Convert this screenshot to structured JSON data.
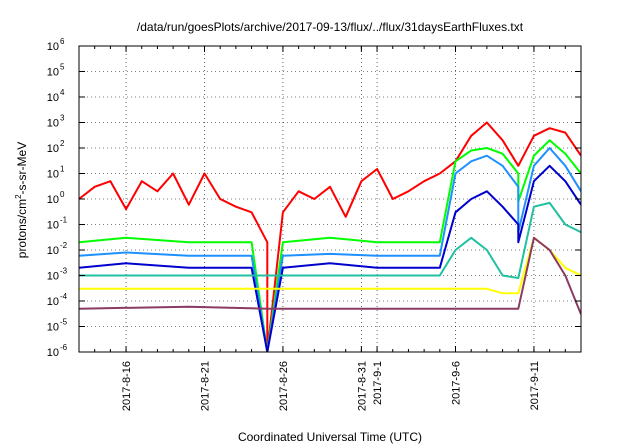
{
  "chart_data": {
    "type": "line",
    "title": "/data/run/goesPlots/archive/2017-09-13/flux/../flux/31daysEarthFluxes.txt",
    "xlabel": "Coordinated Universal Time (UTC)",
    "ylabel": {
      "base": "protons/cm",
      "exp": "2",
      "rest": "-s-sr-MeV"
    },
    "xlim": [
      "2017-08-13",
      "2017-09-14"
    ],
    "ylim": [
      1e-06,
      1000000.0
    ],
    "y_scale": "log",
    "grid": true,
    "x_ticks": [
      {
        "label": "2017-8-16",
        "date": "2017-08-16"
      },
      {
        "label": "2017-8-21",
        "date": "2017-08-21"
      },
      {
        "label": "2017-8-26",
        "date": "2017-08-26"
      },
      {
        "label": "2017-8-31",
        "date": "2017-08-31"
      },
      {
        "label": "2017-9-1",
        "date": "2017-09-01"
      },
      {
        "label": "2017-9-6",
        "date": "2017-09-06"
      },
      {
        "label": "2017-9-11",
        "date": "2017-09-11"
      }
    ],
    "y_ticks": [
      {
        "base": "10",
        "exp": "-6",
        "value": 1e-06
      },
      {
        "base": "10",
        "exp": "-5",
        "value": 1e-05
      },
      {
        "base": "10",
        "exp": "-4",
        "value": 0.0001
      },
      {
        "base": "10",
        "exp": "-3",
        "value": 0.001
      },
      {
        "base": "10",
        "exp": "-2",
        "value": 0.01
      },
      {
        "base": "10",
        "exp": "-1",
        "value": 0.1
      },
      {
        "base": "10",
        "exp": "0",
        "value": 1
      },
      {
        "base": "10",
        "exp": "1",
        "value": 10
      },
      {
        "base": "10",
        "exp": "2",
        "value": 100
      },
      {
        "base": "10",
        "exp": "3",
        "value": 1000
      },
      {
        "base": "10",
        "exp": "4",
        "value": 10000
      },
      {
        "base": "10",
        "exp": "5",
        "value": 100000
      },
      {
        "base": "10",
        "exp": "6",
        "value": 1000000
      }
    ],
    "series": [
      {
        "color": "#ff0000",
        "data": [
          [
            "2017-08-13",
            1.0
          ],
          [
            "2017-08-14",
            3.0
          ],
          [
            "2017-08-15",
            5.0
          ],
          [
            "2017-08-16",
            0.4
          ],
          [
            "2017-08-17",
            5.0
          ],
          [
            "2017-08-18",
            2.0
          ],
          [
            "2017-08-19",
            10
          ],
          [
            "2017-08-20",
            0.6
          ],
          [
            "2017-08-21",
            10
          ],
          [
            "2017-08-22",
            1.0
          ],
          [
            "2017-08-23",
            0.5
          ],
          [
            "2017-08-24",
            0.3
          ],
          [
            "2017-08-25",
            0.02
          ],
          [
            "2017-08-25",
            1e-06
          ],
          [
            "2017-08-26",
            0.3
          ],
          [
            "2017-08-27",
            2.0
          ],
          [
            "2017-08-28",
            1.0
          ],
          [
            "2017-08-29",
            3.0
          ],
          [
            "2017-08-30",
            0.2
          ],
          [
            "2017-08-31",
            5.0
          ],
          [
            "2017-09-01",
            15
          ],
          [
            "2017-09-02",
            1.0
          ],
          [
            "2017-09-03",
            2.0
          ],
          [
            "2017-09-04",
            5.0
          ],
          [
            "2017-09-05",
            10
          ],
          [
            "2017-09-06",
            30
          ],
          [
            "2017-09-07",
            300
          ],
          [
            "2017-09-08",
            1000
          ],
          [
            "2017-09-09",
            200
          ],
          [
            "2017-09-10",
            20
          ],
          [
            "2017-09-11",
            300
          ],
          [
            "2017-09-12",
            600
          ],
          [
            "2017-09-13",
            400
          ],
          [
            "2017-09-14",
            50
          ]
        ]
      },
      {
        "color": "#00ff00",
        "data": [
          [
            "2017-08-13",
            0.02
          ],
          [
            "2017-08-16",
            0.03
          ],
          [
            "2017-08-20",
            0.02
          ],
          [
            "2017-08-24",
            0.02
          ],
          [
            "2017-08-25",
            1e-06
          ],
          [
            "2017-08-26",
            0.02
          ],
          [
            "2017-08-29",
            0.03
          ],
          [
            "2017-09-01",
            0.02
          ],
          [
            "2017-09-05",
            0.02
          ],
          [
            "2017-09-06",
            30
          ],
          [
            "2017-09-07",
            80
          ],
          [
            "2017-09-08",
            100
          ],
          [
            "2017-09-09",
            60
          ],
          [
            "2017-09-10",
            10
          ],
          [
            "2017-09-10",
            0.8
          ],
          [
            "2017-09-11",
            50
          ],
          [
            "2017-09-12",
            200
          ],
          [
            "2017-09-13",
            60
          ],
          [
            "2017-09-14",
            10
          ]
        ]
      },
      {
        "color": "#1e90ff",
        "data": [
          [
            "2017-08-13",
            0.006
          ],
          [
            "2017-08-16",
            0.008
          ],
          [
            "2017-08-20",
            0.006
          ],
          [
            "2017-08-24",
            0.006
          ],
          [
            "2017-08-25",
            1e-06
          ],
          [
            "2017-08-26",
            0.006
          ],
          [
            "2017-08-29",
            0.007
          ],
          [
            "2017-09-01",
            0.006
          ],
          [
            "2017-09-05",
            0.006
          ],
          [
            "2017-09-06",
            10
          ],
          [
            "2017-09-07",
            30
          ],
          [
            "2017-09-08",
            50
          ],
          [
            "2017-09-09",
            20
          ],
          [
            "2017-09-10",
            3.0
          ],
          [
            "2017-09-10",
            0.05
          ],
          [
            "2017-09-11",
            20
          ],
          [
            "2017-09-12",
            100
          ],
          [
            "2017-09-13",
            20
          ],
          [
            "2017-09-14",
            2.0
          ]
        ]
      },
      {
        "color": "#0000cd",
        "data": [
          [
            "2017-08-13",
            0.002
          ],
          [
            "2017-08-16",
            0.003
          ],
          [
            "2017-08-20",
            0.002
          ],
          [
            "2017-08-24",
            0.002
          ],
          [
            "2017-08-25",
            1e-06
          ],
          [
            "2017-08-26",
            0.002
          ],
          [
            "2017-08-29",
            0.003
          ],
          [
            "2017-09-01",
            0.002
          ],
          [
            "2017-09-05",
            0.002
          ],
          [
            "2017-09-06",
            0.3
          ],
          [
            "2017-09-07",
            1.0
          ],
          [
            "2017-09-08",
            2.0
          ],
          [
            "2017-09-09",
            0.5
          ],
          [
            "2017-09-10",
            0.1
          ],
          [
            "2017-09-10",
            0.02
          ],
          [
            "2017-09-11",
            5.0
          ],
          [
            "2017-09-12",
            20
          ],
          [
            "2017-09-13",
            5.0
          ],
          [
            "2017-09-14",
            0.6
          ]
        ]
      },
      {
        "color": "#20c0a0",
        "data": [
          [
            "2017-08-13",
            0.001
          ],
          [
            "2017-08-25",
            0.001
          ],
          [
            "2017-09-01",
            0.001
          ],
          [
            "2017-09-05",
            0.001
          ],
          [
            "2017-09-06",
            0.01
          ],
          [
            "2017-09-07",
            0.03
          ],
          [
            "2017-09-08",
            0.01
          ],
          [
            "2017-09-09",
            0.001
          ],
          [
            "2017-09-10",
            0.0008
          ],
          [
            "2017-09-11",
            0.5
          ],
          [
            "2017-09-12",
            0.7
          ],
          [
            "2017-09-13",
            0.1
          ],
          [
            "2017-09-14",
            0.05
          ]
        ]
      },
      {
        "color": "#ffff00",
        "data": [
          [
            "2017-08-13",
            0.0003
          ],
          [
            "2017-08-20",
            0.0003
          ],
          [
            "2017-08-25",
            0.0003
          ],
          [
            "2017-09-01",
            0.0003
          ],
          [
            "2017-09-05",
            0.0003
          ],
          [
            "2017-09-08",
            0.0003
          ],
          [
            "2017-09-09",
            0.0002
          ],
          [
            "2017-09-10",
            0.0002
          ],
          [
            "2017-09-11",
            0.03
          ],
          [
            "2017-09-12",
            0.01
          ],
          [
            "2017-09-13",
            0.002
          ],
          [
            "2017-09-14",
            0.001
          ]
        ]
      },
      {
        "color": "#8b3a62",
        "data": [
          [
            "2017-08-13",
            5e-05
          ],
          [
            "2017-08-20",
            6e-05
          ],
          [
            "2017-08-25",
            5e-05
          ],
          [
            "2017-09-01",
            5e-05
          ],
          [
            "2017-09-05",
            5e-05
          ],
          [
            "2017-09-08",
            5e-05
          ],
          [
            "2017-09-09",
            5e-05
          ],
          [
            "2017-09-10",
            5e-05
          ],
          [
            "2017-09-11",
            0.03
          ],
          [
            "2017-09-12",
            0.01
          ],
          [
            "2017-09-13",
            0.001
          ],
          [
            "2017-09-14",
            3e-05
          ]
        ]
      }
    ]
  }
}
